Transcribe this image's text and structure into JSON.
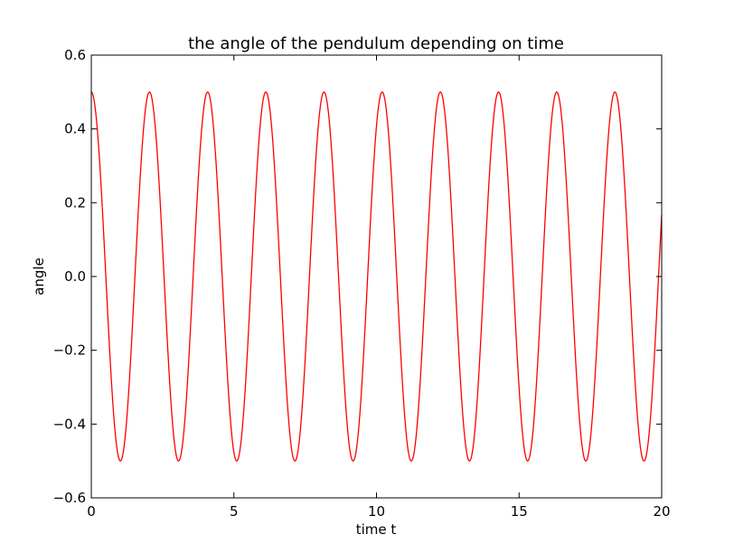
{
  "chart_data": {
    "type": "line",
    "title": "the angle of the pendulum depending on time",
    "xlabel": "time t",
    "ylabel": "angle",
    "xlim": [
      0,
      20
    ],
    "ylim": [
      -0.6,
      0.6
    ],
    "xticks": [
      0,
      5,
      10,
      15,
      20
    ],
    "xtick_labels": [
      "0",
      "5",
      "10",
      "15",
      "20"
    ],
    "yticks": [
      -0.6,
      -0.4,
      -0.2,
      0.0,
      0.2,
      0.4,
      0.6
    ],
    "ytick_labels": [
      "−0.6",
      "−0.4",
      "−0.2",
      "0.0",
      "0.2",
      "0.4",
      "0.6"
    ],
    "grid": false,
    "series": [
      {
        "color": "#ff0000",
        "amplitude": 0.5,
        "period": 2.04,
        "x": [
          0,
          0.51,
          1.02,
          1.53,
          2.04,
          2.55,
          3.06,
          3.57,
          4.08,
          4.59,
          5.1,
          5.61,
          6.12,
          6.63,
          7.14,
          7.65,
          8.16,
          8.67,
          9.18,
          9.69,
          10.2,
          10.71,
          11.22,
          11.73,
          12.24,
          12.75,
          13.26,
          13.77,
          14.28,
          14.79,
          15.3,
          15.81,
          16.32,
          16.83,
          17.34,
          17.85,
          18.36,
          18.87,
          19.38,
          19.89,
          20.0
        ],
        "y": [
          0.5,
          0.0,
          -0.5,
          0.0,
          0.5,
          0.0,
          -0.5,
          0.0,
          0.5,
          0.0,
          -0.5,
          0.0,
          0.5,
          0.0,
          -0.5,
          0.0,
          0.5,
          0.0,
          -0.5,
          0.0,
          0.5,
          0.0,
          -0.5,
          0.0,
          0.5,
          0.0,
          -0.5,
          0.0,
          0.5,
          0.0,
          -0.5,
          0.0,
          0.5,
          0.0,
          -0.5,
          0.0,
          0.5,
          0.0,
          -0.5,
          0.0,
          0.17
        ]
      }
    ]
  }
}
